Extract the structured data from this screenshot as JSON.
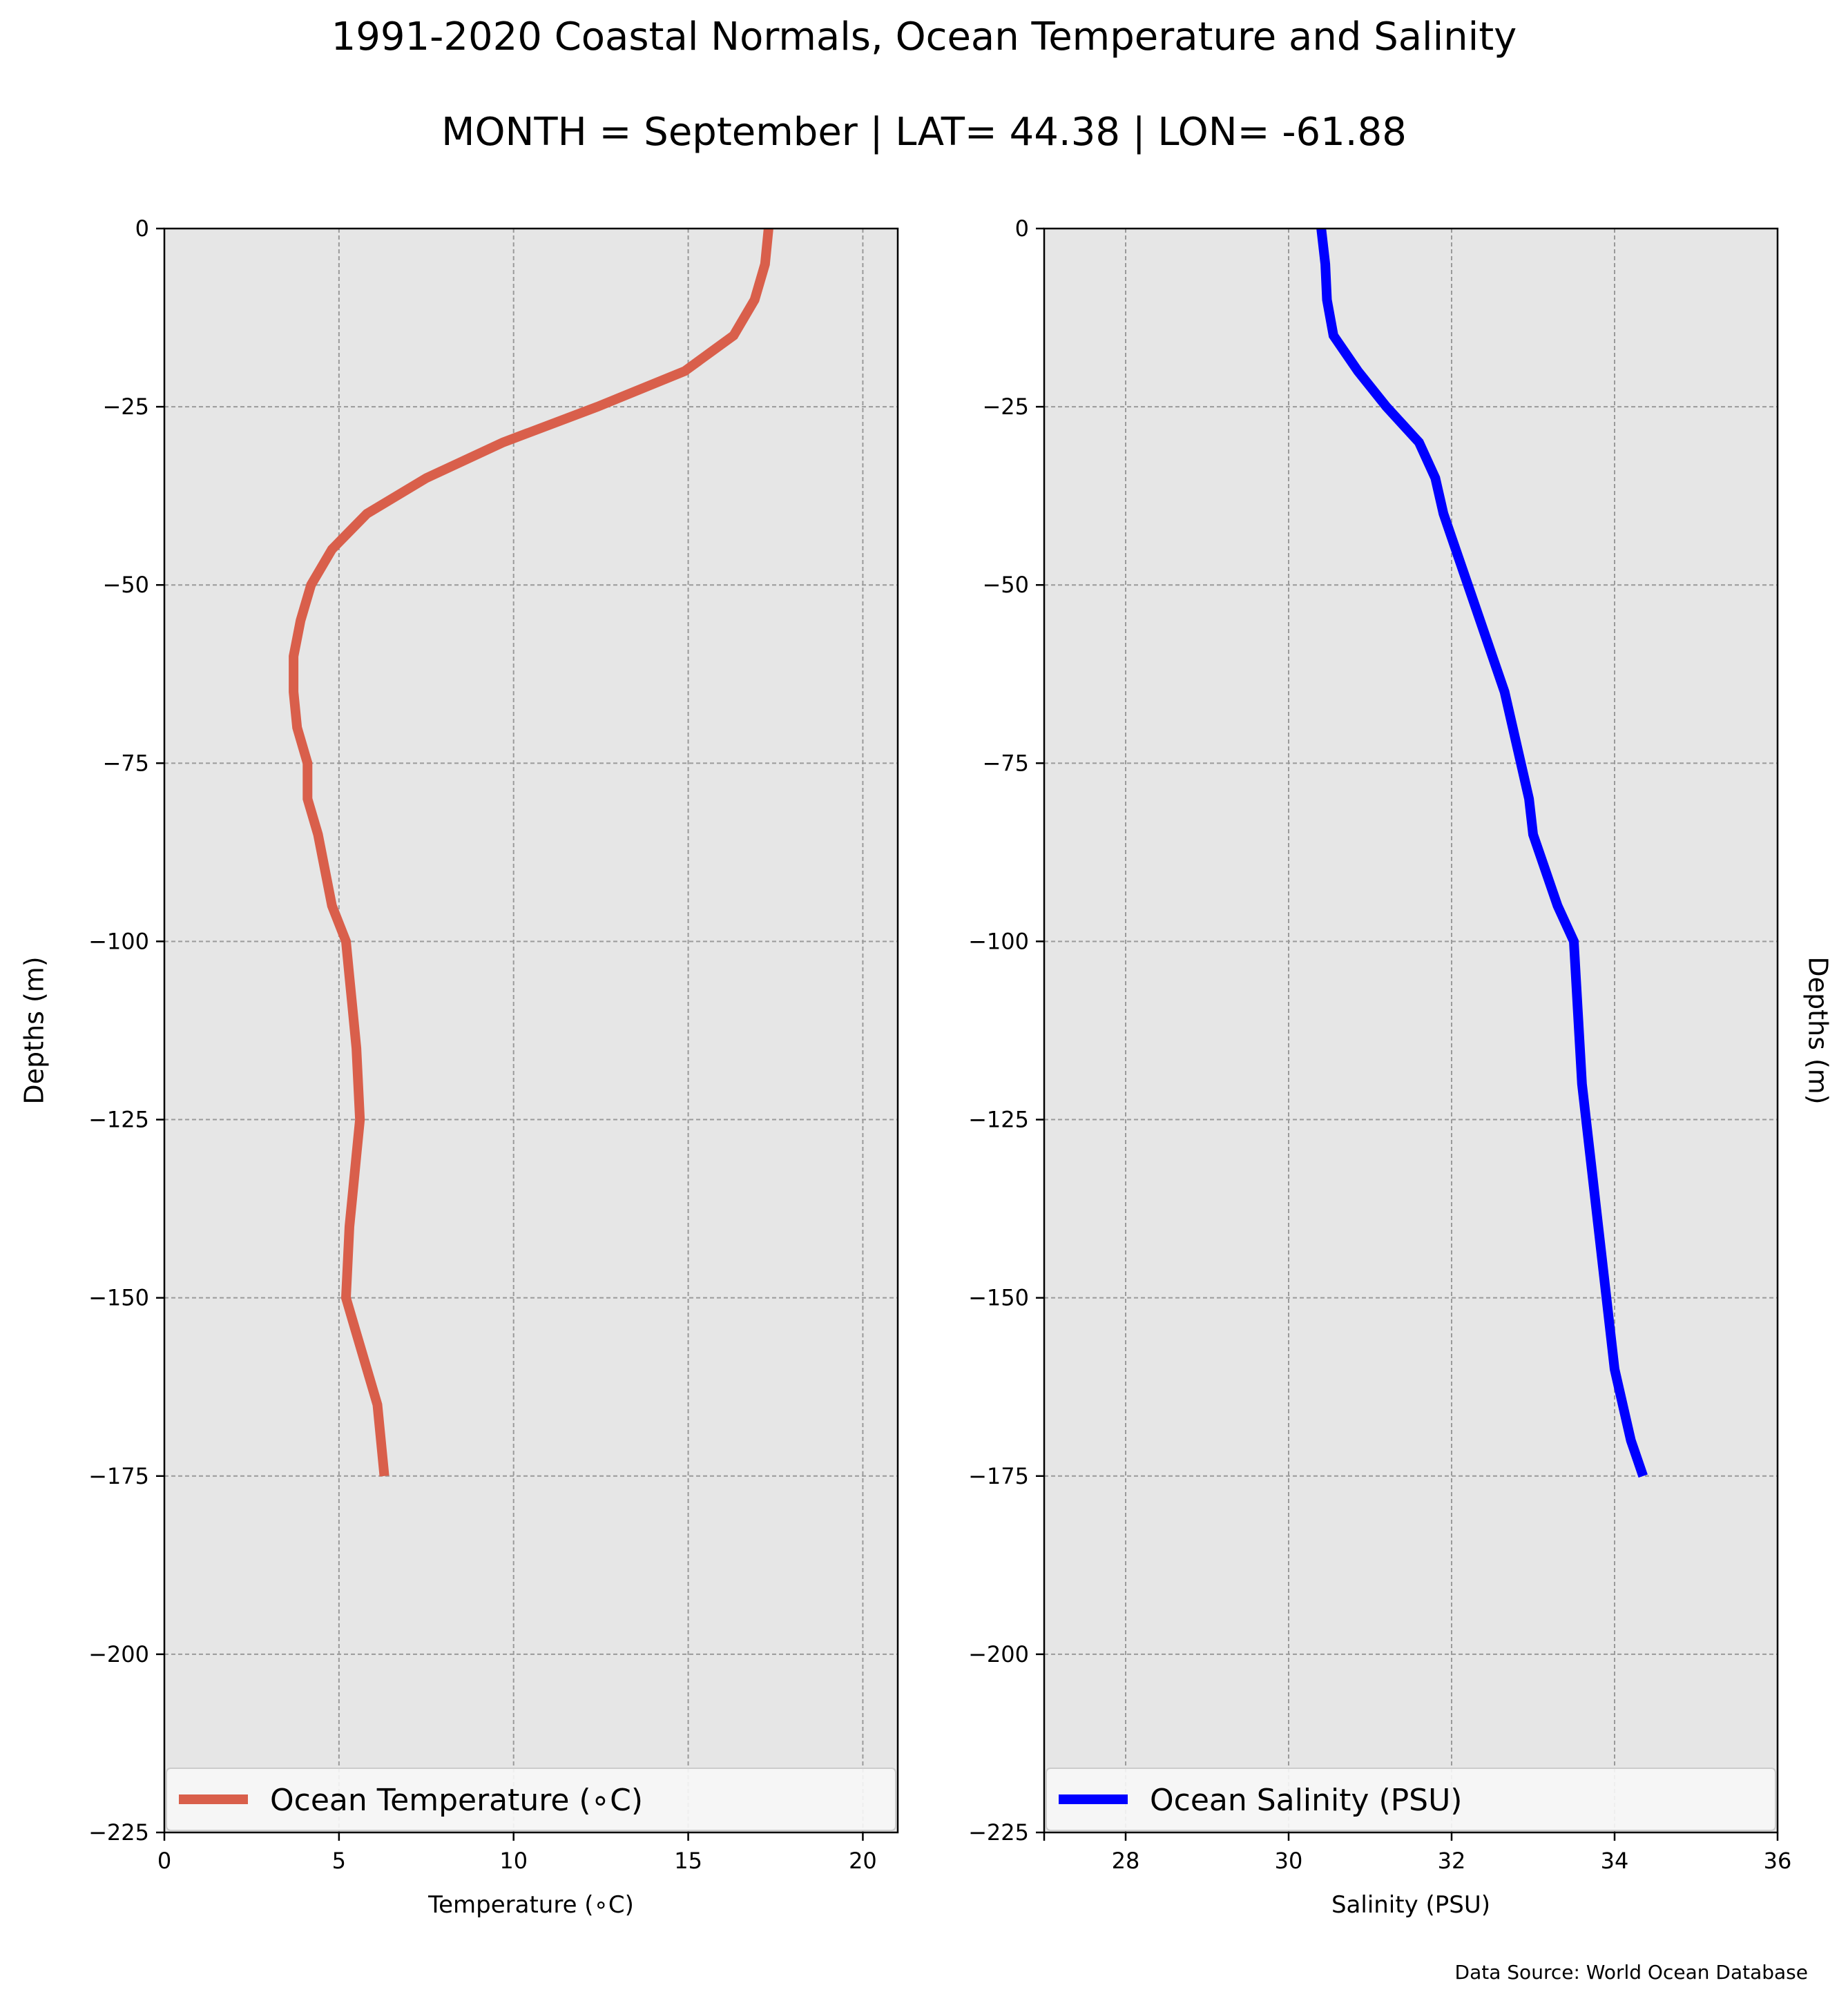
{
  "figure": {
    "title": "1991-2020 Coastal Normals, Ocean Temperature and Salinity",
    "subtitle": "MONTH = September | LAT= 44.38 | LON= -61.88",
    "source": "Data Source: World Ocean Database",
    "background": "#ffffff",
    "panel_background": "#e6e6e6"
  },
  "chart_data": [
    {
      "type": "line",
      "xlabel": "Temperature ($^\\circ$C)",
      "xlabel_display": "Temperature (∘C)",
      "ylabel": "Depths (m)",
      "xlim": [
        0,
        21
      ],
      "ylim": [
        -225,
        0
      ],
      "xticks": [
        0,
        5,
        10,
        15,
        20
      ],
      "xtick_labels": [
        "0",
        "5",
        "10",
        "15",
        "20"
      ],
      "yticks": [
        0,
        -25,
        -50,
        -75,
        -100,
        -125,
        -150,
        -175,
        -200,
        -225
      ],
      "ytick_labels": [
        "0",
        "−25",
        "−50",
        "−75",
        "−100",
        "−125",
        "−150",
        "−175",
        "−200",
        "−225"
      ],
      "grid": true,
      "legend_position": "lower center",
      "series": [
        {
          "name": "Ocean Temperature (∘C)",
          "color": "#d95f4b",
          "x": [
            17.3,
            17.2,
            16.9,
            16.3,
            14.9,
            12.4,
            9.7,
            7.5,
            5.8,
            4.8,
            4.2,
            3.9,
            3.7,
            3.7,
            3.8,
            4.1,
            4.1,
            4.4,
            4.8,
            5.2,
            5.3,
            5.4,
            5.5,
            5.6,
            5.5,
            5.4,
            5.3,
            5.2,
            5.5,
            5.8,
            6.1,
            6.3
          ],
          "y": [
            0,
            -5,
            -10,
            -15,
            -20,
            -25,
            -30,
            -35,
            -40,
            -45,
            -50,
            -55,
            -60,
            -65,
            -70,
            -75,
            -80,
            -85,
            -95,
            -100,
            -105,
            -110,
            -115,
            -125,
            -130,
            -135,
            -140,
            -150,
            -155,
            -160,
            -165,
            -175
          ]
        }
      ]
    },
    {
      "type": "line",
      "xlabel": "Salinity (PSU)",
      "ylabel": "Depths (m)",
      "xlim": [
        27,
        36
      ],
      "ylim": [
        -225,
        0
      ],
      "xticks": [
        28,
        30,
        32,
        34,
        36
      ],
      "xtick_labels": [
        "28",
        "30",
        "32",
        "34",
        "36"
      ],
      "yticks": [
        0,
        -25,
        -50,
        -75,
        -100,
        -125,
        -150,
        -175,
        -200,
        -225
      ],
      "ytick_labels": [
        "0",
        "−25",
        "−50",
        "−75",
        "−100",
        "−125",
        "−150",
        "−175",
        "−200",
        "−225"
      ],
      "grid": true,
      "legend_position": "lower center",
      "series": [
        {
          "name": "Ocean Salinity (PSU)",
          "color": "#0000ff",
          "x": [
            30.4,
            30.45,
            30.47,
            30.55,
            30.85,
            31.2,
            31.6,
            31.8,
            31.9,
            32.05,
            32.2,
            32.35,
            32.5,
            32.65,
            32.75,
            32.85,
            32.95,
            33.0,
            33.15,
            33.3,
            33.5,
            33.55,
            33.6,
            33.7,
            33.8,
            33.9,
            34.0,
            34.2,
            34.35
          ],
          "y": [
            0,
            -5,
            -10,
            -15,
            -20,
            -25,
            -30,
            -35,
            -40,
            -45,
            -50,
            -55,
            -60,
            -65,
            -70,
            -75,
            -80,
            -85,
            -90,
            -95,
            -100,
            -110,
            -120,
            -130,
            -140,
            -150,
            -160,
            -170,
            -175
          ]
        }
      ]
    }
  ]
}
